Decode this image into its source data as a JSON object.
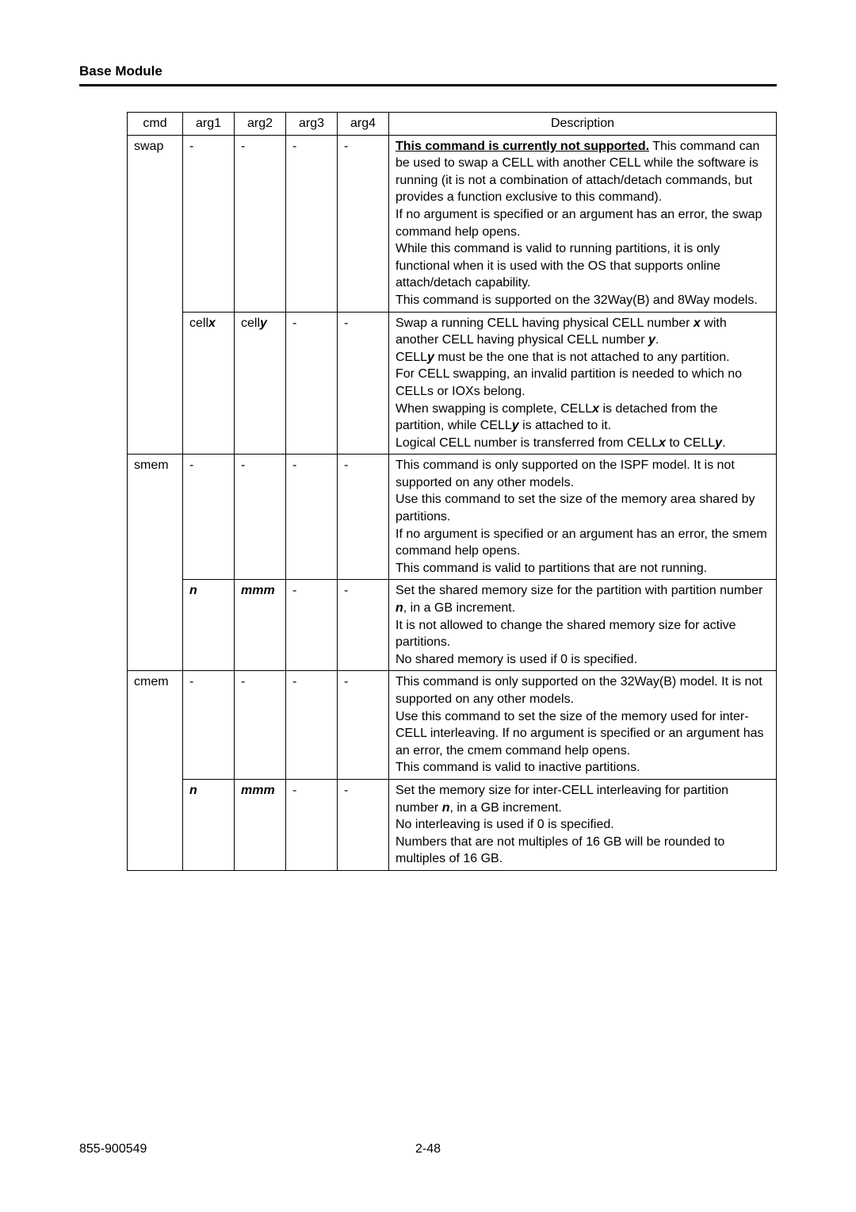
{
  "header": {
    "title": "Base Module"
  },
  "table": {
    "columns": [
      "cmd",
      "arg1",
      "arg2",
      "arg3",
      "arg4",
      "Description"
    ]
  },
  "rows": {
    "swap_head": {
      "cmd": "swap",
      "arg1": "-",
      "arg2": "-",
      "arg3": "-",
      "arg4": "-",
      "desc_line1": "This command is currently not supported.",
      "desc_rest": "This command can be used to swap a CELL with another CELL while the software is running (it is not a combination of attach/detach commands, but provides a function exclusive to this command).\nIf no argument is specified or an argument has an error, the swap command help opens.\nWhile this command is valid to running partitions, it is only functional when it is used with the OS that supports online attach/detach capability.\nThis command is supported on the 32Way(B) and 8Way models."
    },
    "swap_cell": {
      "arg1_pre": "cell",
      "arg1_var": "x",
      "arg2_pre": "cell",
      "arg2_var": "y",
      "arg3": "-",
      "arg4": "-",
      "desc_p1a": "Swap a running CELL having physical CELL number ",
      "desc_p1_var1": "x",
      "desc_p1b": " with another CELL having physical CELL number ",
      "desc_p1_var2": "y",
      "desc_p1c": ".",
      "desc_p2a": "CELL",
      "desc_p2_var1": "y",
      "desc_p2b": " must be the one that is not attached to any partition.",
      "desc_p3": "For CELL swapping, an invalid partition is needed to which no CELLs or IOXs belong.",
      "desc_p4a": "When swapping is complete, CELL",
      "desc_p4_var1": "x",
      "desc_p4b": " is detached from the partition, while CELL",
      "desc_p4_var2": "y",
      "desc_p4c": " is attached to it.",
      "desc_p5a": "Logical CELL number is transferred from CELL",
      "desc_p5_var1": "x",
      "desc_p5b": " to CELL",
      "desc_p5_var2": "y",
      "desc_p5c": "."
    },
    "smem_head": {
      "cmd": "smem",
      "arg1": "-",
      "arg2": "-",
      "arg3": "-",
      "arg4": "-",
      "desc": "This command is only supported on the ISPF model. It is not supported on any other models.\nUse this command to set the size of the memory area shared by partitions.\nIf no argument is specified or an argument has an error, the smem command help opens.\nThis command is valid to partitions that are not running."
    },
    "smem_n": {
      "arg1": "n",
      "arg2": "mmm",
      "arg3": "-",
      "arg4": "-",
      "desc_a": "Set the shared memory size for the partition with partition number ",
      "desc_var": "n",
      "desc_b": ", in a GB increment.\nIt is not allowed to change the shared memory size for active partitions.\nNo shared memory is used if 0 is specified."
    },
    "cmem_head": {
      "cmd": "cmem",
      "arg1": "-",
      "arg2": "-",
      "arg3": "-",
      "arg4": "-",
      "desc": "This command is only supported on the 32Way(B) model. It is not supported on any other models.\nUse this command to set the size of the memory used for inter-CELL interleaving. If no argument is specified or an argument has an error, the cmem command help opens.\nThis command is valid to inactive partitions."
    },
    "cmem_n": {
      "arg1": "n",
      "arg2": "mmm",
      "arg3": "-",
      "arg4": "-",
      "desc_a": "Set the memory size for inter-CELL interleaving for partition number ",
      "desc_var": "n",
      "desc_b": ", in a GB increment.\nNo interleaving is used if 0 is specified.\nNumbers that are not multiples of 16 GB will be rounded to multiples of 16 GB."
    }
  },
  "footer": {
    "left": "855-900549",
    "center": "2-48"
  }
}
